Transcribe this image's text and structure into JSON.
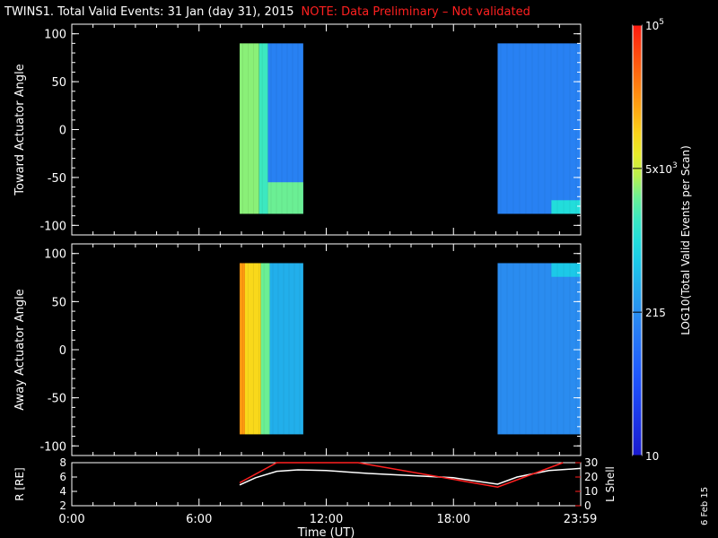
{
  "title": {
    "main": "TWINS1. Total Valid Events: 31 Jan (day  31), 2015",
    "note": "NOTE: Data Preliminary – Not validated"
  },
  "stamp": "6 Feb 15",
  "colors": {
    "background": "#000000",
    "axis": "#ffffff",
    "note": "#ff2020",
    "lshell": "#ff2020",
    "radius": "#ffffff"
  },
  "chart_data": [
    {
      "type": "heatmap",
      "ylabel": "Toward Actuator Angle",
      "xlim_hours": [
        0,
        24
      ],
      "ylim": [
        -110,
        110
      ],
      "yticks": [
        "100",
        "50",
        "0",
        "-50",
        "-100"
      ],
      "ytick_values": [
        100,
        50,
        0,
        -50,
        -100
      ],
      "blocks": [
        {
          "x_start": "07:55",
          "x_end": "10:55",
          "y_range": [
            -88,
            90
          ],
          "columns": [
            {
              "x_end": "08:50",
              "level": 0.62
            },
            {
              "x_end": "09:15",
              "level": 0.55
            },
            {
              "x_end": "10:55",
              "level": 0.3,
              "lower_level": 0.6,
              "lower_below": -55
            }
          ]
        },
        {
          "x_start": "20:05",
          "x_end": "23:59",
          "y_range": [
            -88,
            90
          ],
          "level": 0.3,
          "corner_level": 0.5,
          "corner": "bottom-right"
        }
      ]
    },
    {
      "type": "heatmap",
      "ylabel": "Away Actuator Angle",
      "xlim_hours": [
        0,
        24
      ],
      "ylim": [
        -110,
        110
      ],
      "yticks": [
        "100",
        "50",
        "0",
        "-50",
        "-100"
      ],
      "ytick_values": [
        100,
        50,
        0,
        -50,
        -100
      ],
      "blocks": [
        {
          "x_start": "07:55",
          "x_end": "10:55",
          "y_range": [
            -88,
            90
          ],
          "columns": [
            {
              "x_end": "08:10",
              "level": 0.82
            },
            {
              "x_end": "08:55",
              "level": 0.74
            },
            {
              "x_end": "09:20",
              "level": 0.6
            },
            {
              "x_end": "10:55",
              "level": 0.4
            }
          ]
        },
        {
          "x_start": "20:05",
          "x_end": "23:59",
          "y_range": [
            -88,
            90
          ],
          "level": 0.33,
          "corner_level": 0.45,
          "corner": "top-right"
        }
      ]
    },
    {
      "type": "line",
      "ylabel": "R [RE]",
      "y2label": "L Shell",
      "xlabel": "Time (UT)",
      "xticks": [
        "0:00",
        "6:00",
        "12:00",
        "18:00",
        "23:59"
      ],
      "xtick_hours": [
        0,
        6,
        12,
        18,
        23.98
      ],
      "ylim": [
        2,
        8
      ],
      "yticks": [
        "8",
        "6",
        "4",
        "2"
      ],
      "y2lim": [
        0,
        30
      ],
      "y2ticks": [
        "30",
        "20",
        "10",
        "0"
      ],
      "series": [
        {
          "axis": "left",
          "x": [
            "07:55",
            "08:40",
            "09:40",
            "10:40",
            "12:00",
            "14:00",
            "16:00",
            "18:00",
            "20:05",
            "21:00",
            "22:30",
            "23:59"
          ],
          "values": [
            4.9,
            5.9,
            6.8,
            7.0,
            6.9,
            6.5,
            6.2,
            5.9,
            5.0,
            6.0,
            6.9,
            7.2
          ]
        },
        {
          "axis": "right",
          "x": [
            "07:55",
            "09:40",
            "13:30",
            "20:05",
            "23:10"
          ],
          "values": [
            16,
            31,
            31,
            13,
            30
          ]
        }
      ]
    }
  ],
  "colorbar": {
    "label": "LOG10(Total Valid Events per Scan)",
    "tick_labels": [
      "10",
      "215",
      "5x10",
      "10"
    ],
    "tick_superscripts": [
      "",
      "",
      "3",
      "5"
    ],
    "tick_levels": [
      0,
      0.333,
      0.667,
      1.0
    ],
    "range": [
      10,
      100000
    ],
    "scale": "log"
  }
}
